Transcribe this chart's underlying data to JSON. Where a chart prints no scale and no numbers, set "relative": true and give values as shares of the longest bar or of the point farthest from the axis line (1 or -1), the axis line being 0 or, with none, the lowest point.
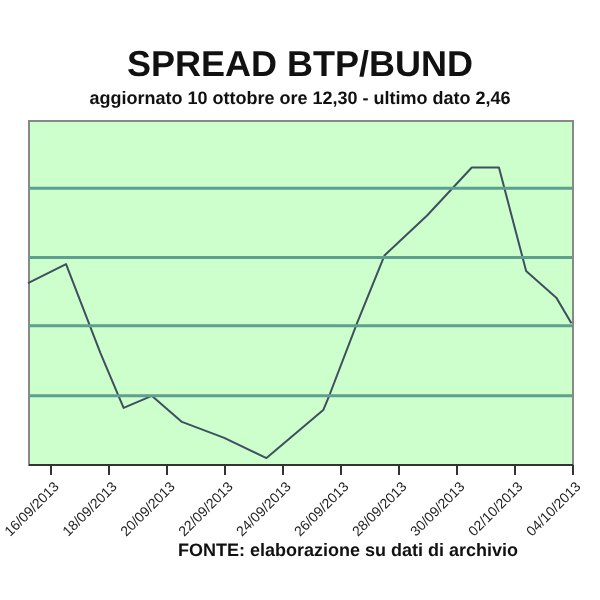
{
  "chart_data": {
    "type": "line",
    "title": "SPREAD BTP/BUND",
    "subtitle": "aggiornato 10 ottobre ore 12,30 - ultimo dato 2,46",
    "relative": true,
    "ref_lines": [
      {
        "axis": "y",
        "value": 0.23,
        "color": "#5f9f8f"
      },
      {
        "axis": "y",
        "value": 0.466,
        "color": "#5f9f8f"
      },
      {
        "axis": "y",
        "value": 0.696,
        "color": "#5f9f8f"
      },
      {
        "axis": "y",
        "value": 0.93,
        "color": "#5f9f8f"
      }
    ],
    "color": "#3f4f5f",
    "x": [
      "2013-09-15T05:30",
      "2013-09-16T13:00",
      "2013-09-17T17:30",
      "2013-09-18T12:40",
      "2013-09-19T12:00",
      "2013-09-20T13:00",
      "2013-09-22T00:00",
      "2013-09-23T11:00",
      "2013-09-25T10:00",
      "2013-09-25T15:30",
      "2013-09-26T14:00",
      "2013-09-27T12:40",
      "2013-09-29T00:00",
      "2013-09-30T13:00",
      "2013-10-01T11:30",
      "2013-10-02T10:00",
      "2013-10-03T11:00",
      "2013-10-03T23:30"
    ],
    "values": [
      0.61,
      0.674,
      0.374,
      0.189,
      0.23,
      0.142,
      0.088,
      0.02,
      0.182,
      0.236,
      0.475,
      0.703,
      0.838,
      1,
      1,
      0.651,
      0.561,
      0.475
    ],
    "xlim": [
      "2013-09-15T05:30",
      "2013-10-04T00:00"
    ],
    "xticks": [
      {
        "value": "2013-09-16",
        "label": "16/09/2013"
      },
      {
        "value": "2013-09-18",
        "label": "18/09/2013"
      },
      {
        "value": "2013-09-20",
        "label": "20/09/2013"
      },
      {
        "value": "2013-09-22",
        "label": "22/09/2013"
      },
      {
        "value": "2013-09-24",
        "label": "24/09/2013"
      },
      {
        "value": "2013-09-26",
        "label": "26/09/2013"
      },
      {
        "value": "2013-09-28",
        "label": "28/09/2013"
      },
      {
        "value": "2013-09-30",
        "label": "30/09/2013"
      },
      {
        "value": "2013-10-02",
        "label": "02/10/2013"
      },
      {
        "value": "2013-10-04",
        "label": "04/10/2013"
      }
    ],
    "annotations": [
      "FONTE: elaborazione su dati di archivio"
    ]
  }
}
